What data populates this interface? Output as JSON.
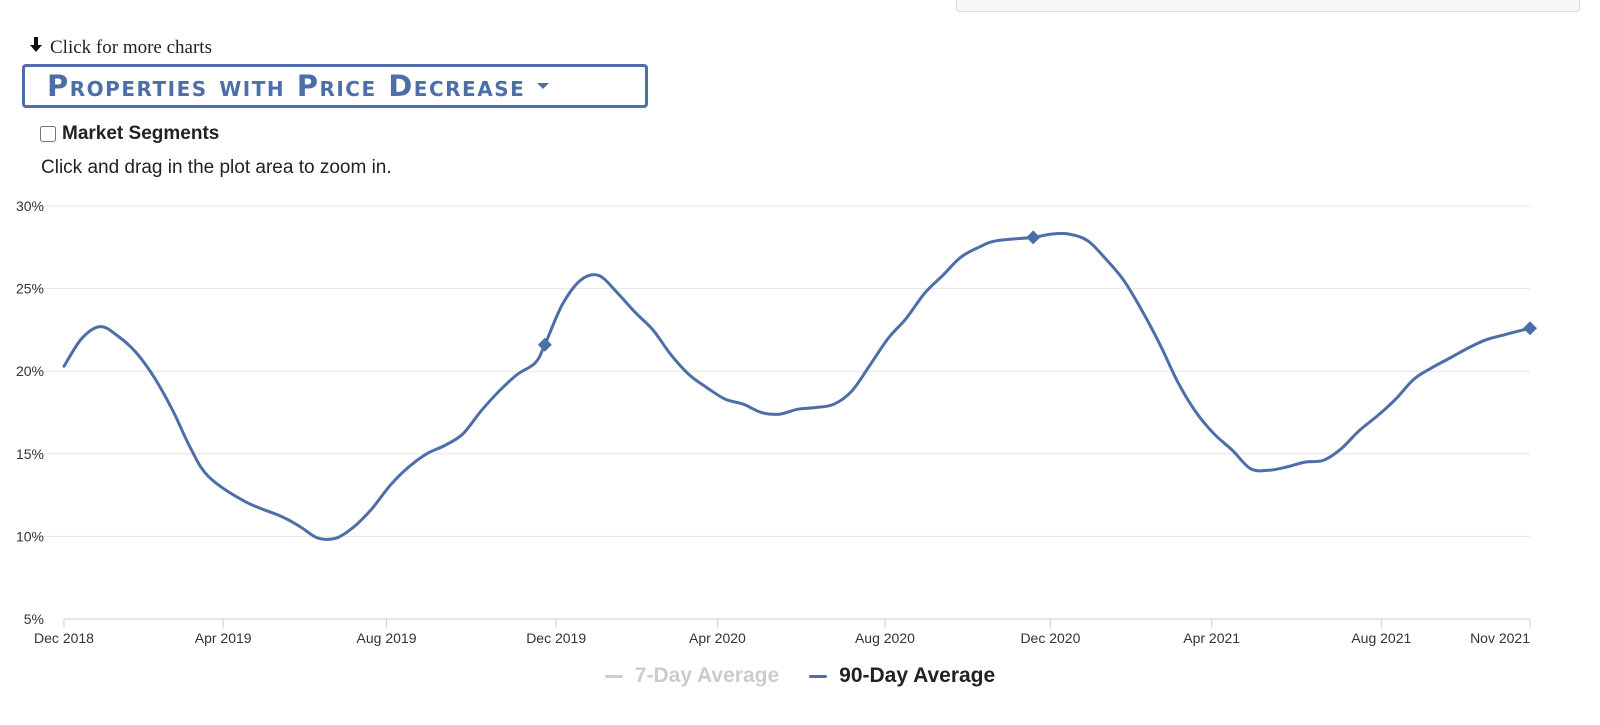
{
  "header": {
    "more_charts_label": "Click for more charts",
    "chart_selector_label": "Properties with Price Decrease",
    "market_segments_label": "Market Segments",
    "zoom_hint": "Click and drag in the plot area to zoom in."
  },
  "colors": {
    "series": "#4e6ea8",
    "inactive": "#cccccc",
    "grid": "#e6e6e6"
  },
  "chart_data": {
    "type": "line",
    "title": "Properties with Price Decrease",
    "xlabel": "",
    "ylabel": "",
    "ylim": [
      5,
      30
    ],
    "xlim": [
      0,
      35
    ],
    "y_ticks": [
      "5%",
      "10%",
      "15%",
      "20%",
      "25%",
      "30%"
    ],
    "x_ticks": [
      {
        "label": "Dec 2018",
        "x": 0
      },
      {
        "label": "Apr 2019",
        "x": 3.8
      },
      {
        "label": "Aug 2019",
        "x": 7.7
      },
      {
        "label": "Dec 2019",
        "x": 11.75
      },
      {
        "label": "Apr 2020",
        "x": 15.6
      },
      {
        "label": "Aug 2020",
        "x": 19.6
      },
      {
        "label": "Dec 2020",
        "x": 23.55
      },
      {
        "label": "Apr 2021",
        "x": 27.4
      },
      {
        "label": "Aug 2021",
        "x": 31.45
      },
      {
        "label": "Nov 2021",
        "x": 35
      }
    ],
    "series": [
      {
        "name": "7-Day Average",
        "visible": false,
        "points": []
      },
      {
        "name": "90-Day Average",
        "visible": true,
        "points": [
          [
            0,
            20.3
          ],
          [
            0.43,
            22.0
          ],
          [
            0.87,
            22.7
          ],
          [
            1.3,
            22.1
          ],
          [
            1.73,
            21.1
          ],
          [
            2.16,
            19.6
          ],
          [
            2.6,
            17.6
          ],
          [
            3.03,
            15.3
          ],
          [
            3.46,
            13.6
          ],
          [
            4.33,
            12.1
          ],
          [
            5.2,
            11.2
          ],
          [
            5.63,
            10.6
          ],
          [
            6.06,
            9.9
          ],
          [
            6.5,
            9.9
          ],
          [
            6.93,
            10.6
          ],
          [
            7.36,
            11.7
          ],
          [
            7.79,
            13.1
          ],
          [
            8.23,
            14.2
          ],
          [
            8.66,
            15.0
          ],
          [
            9.09,
            15.5
          ],
          [
            9.52,
            16.2
          ],
          [
            9.96,
            17.6
          ],
          [
            10.39,
            18.8
          ],
          [
            10.82,
            19.8
          ],
          [
            11.25,
            20.5
          ],
          [
            11.48,
            21.6
          ],
          [
            11.89,
            24.0
          ],
          [
            12.33,
            25.5
          ],
          [
            12.76,
            25.8
          ],
          [
            13.19,
            24.8
          ],
          [
            13.62,
            23.6
          ],
          [
            14.06,
            22.5
          ],
          [
            14.49,
            21.0
          ],
          [
            14.92,
            19.8
          ],
          [
            15.35,
            19.0
          ],
          [
            15.79,
            18.3
          ],
          [
            16.22,
            18.0
          ],
          [
            16.65,
            17.5
          ],
          [
            17.08,
            17.4
          ],
          [
            17.52,
            17.7
          ],
          [
            17.95,
            17.8
          ],
          [
            18.38,
            18.0
          ],
          [
            18.81,
            18.8
          ],
          [
            19.25,
            20.4
          ],
          [
            19.68,
            22.0
          ],
          [
            20.11,
            23.2
          ],
          [
            20.54,
            24.7
          ],
          [
            20.98,
            25.8
          ],
          [
            21.41,
            26.9
          ],
          [
            21.84,
            27.5
          ],
          [
            22.27,
            27.9
          ],
          [
            23.14,
            28.1
          ],
          [
            23.57,
            28.3
          ],
          [
            24.0,
            28.3
          ],
          [
            24.44,
            27.9
          ],
          [
            24.87,
            26.8
          ],
          [
            25.3,
            25.5
          ],
          [
            25.73,
            23.7
          ],
          [
            26.17,
            21.6
          ],
          [
            26.6,
            19.3
          ],
          [
            27.03,
            17.5
          ],
          [
            27.46,
            16.2
          ],
          [
            27.9,
            15.2
          ],
          [
            28.33,
            14.1
          ],
          [
            28.76,
            14.0
          ],
          [
            29.19,
            14.2
          ],
          [
            29.63,
            14.5
          ],
          [
            30.06,
            14.6
          ],
          [
            30.49,
            15.3
          ],
          [
            30.92,
            16.4
          ],
          [
            31.36,
            17.3
          ],
          [
            31.79,
            18.3
          ],
          [
            32.22,
            19.5
          ],
          [
            32.65,
            20.2
          ],
          [
            33.09,
            20.8
          ],
          [
            33.52,
            21.4
          ],
          [
            33.95,
            21.9
          ],
          [
            34.38,
            22.2
          ],
          [
            35.0,
            22.6
          ]
        ],
        "markers": [
          [
            11.48,
            21.6
          ],
          [
            23.14,
            28.1
          ],
          [
            35.0,
            22.6
          ]
        ]
      }
    ]
  }
}
